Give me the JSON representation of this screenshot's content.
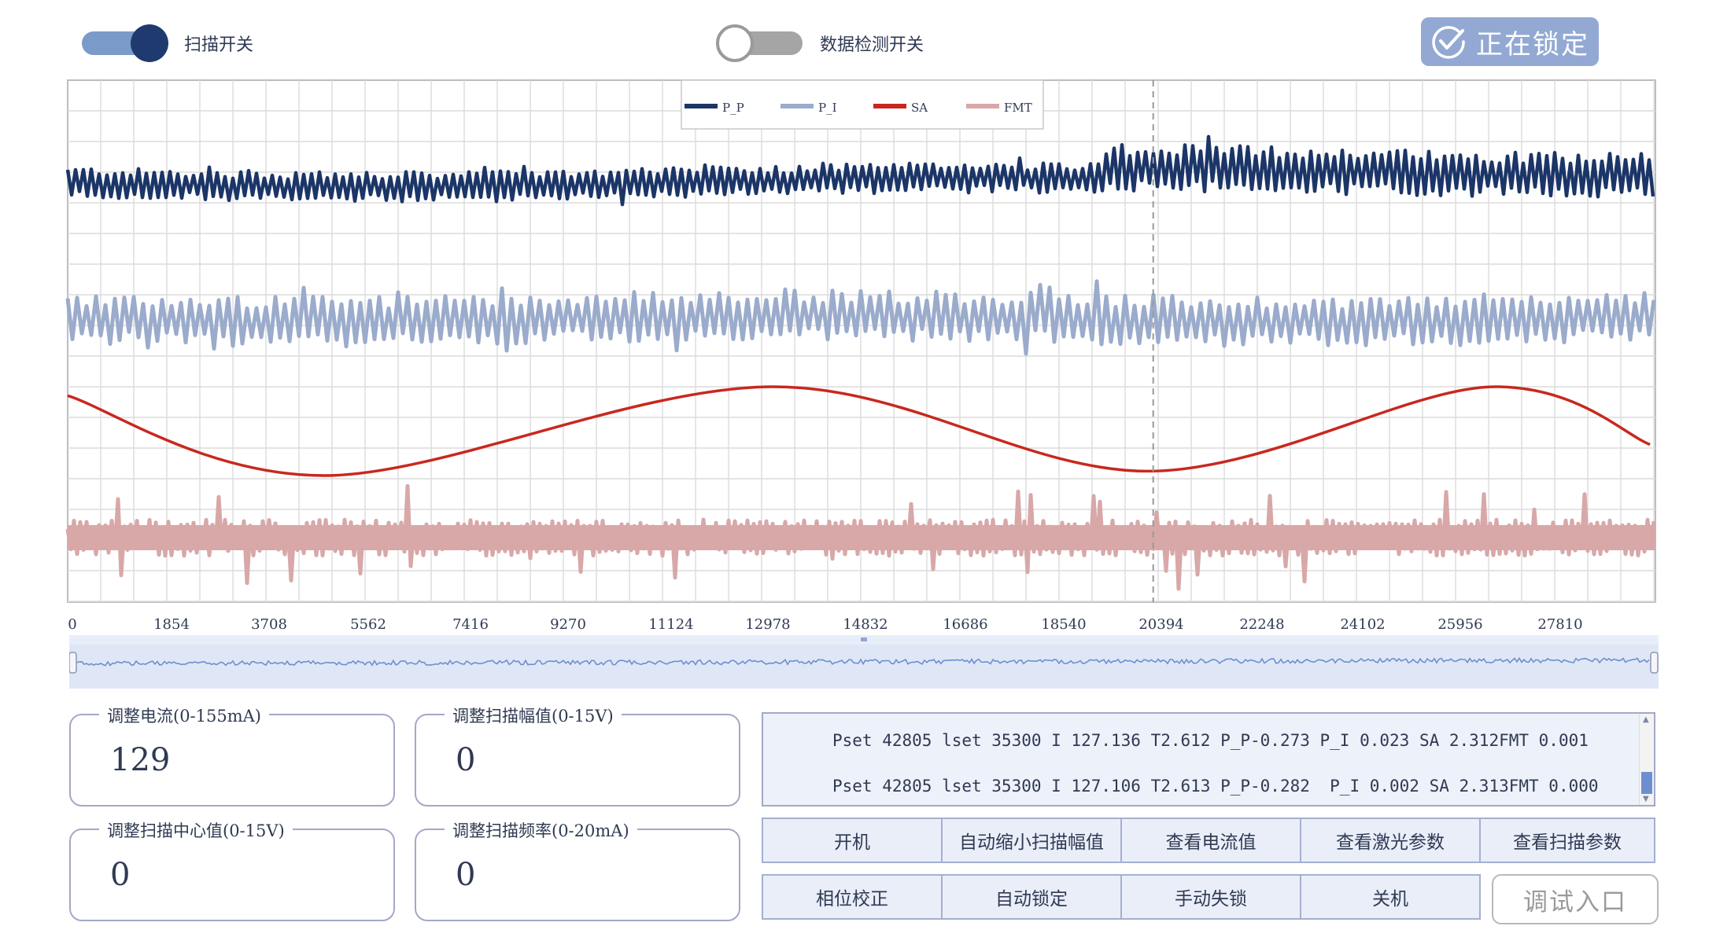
{
  "toggles": {
    "scan": {
      "label": "扫描开关",
      "on": true
    },
    "data_check": {
      "label": "数据检测开关",
      "on": false
    }
  },
  "lock_button": {
    "label": "正在锁定",
    "icon": "check-circle-icon"
  },
  "chart_data": {
    "type": "line",
    "legend": [
      "P_P",
      "P_I",
      "SA",
      "FMT"
    ],
    "legend_placement": "top-center",
    "x_ticks": [
      "0",
      "1854",
      "3708",
      "5562",
      "7416",
      "9270",
      "11124",
      "12978",
      "14832",
      "16686",
      "18540",
      "20394",
      "22248",
      "24102",
      "25956",
      "27810"
    ],
    "xlim": [
      0,
      29700
    ],
    "grid": true,
    "cursor_x": 20394,
    "series": [
      {
        "name": "P_P",
        "color": "#1b3567",
        "style": "dense oscillation, upper band"
      },
      {
        "name": "P_I",
        "color": "#9aabcc",
        "style": "dense oscillation, second band"
      },
      {
        "name": "SA",
        "color": "#c8281e",
        "style": "slow sine sweep",
        "shape": [
          [
            0,
            0.9
          ],
          [
            4800,
            0.0
          ],
          [
            13200,
            1.0
          ],
          [
            20200,
            0.05
          ],
          [
            26700,
            1.0
          ],
          [
            29600,
            0.35
          ]
        ]
      },
      {
        "name": "FMT",
        "color": "#d8a8a8",
        "style": "dense oscillation with spikes, lower band"
      }
    ]
  },
  "fields": {
    "current": {
      "label": "调整电流(0-155mA)",
      "value": "129"
    },
    "amplitude": {
      "label": "调整扫描幅值(0-15V)",
      "value": "0"
    },
    "center": {
      "label": "调整扫描中心值(0-15V)",
      "value": "0"
    },
    "frequency": {
      "label": "调整扫描频率(0-20mA)",
      "value": "0"
    }
  },
  "log": {
    "lines": [
      "Pset 42805 lset 35300 I 127.136 T2.612 P_P-0.273 P_I 0.023 SA 2.312FMT 0.001",
      "Pset 42805 lset 35300 I 127.106 T2.613 P_P-0.282  P_I 0.002 SA 2.313FMT 0.000"
    ]
  },
  "buttons": {
    "row1": [
      "开机",
      "自动缩小扫描幅值",
      "查看电流值",
      "查看激光参数",
      "查看扫描参数"
    ],
    "row2": [
      "相位校正",
      "自动锁定",
      "手动失锁",
      "关机"
    ],
    "debug": "调试入口"
  }
}
